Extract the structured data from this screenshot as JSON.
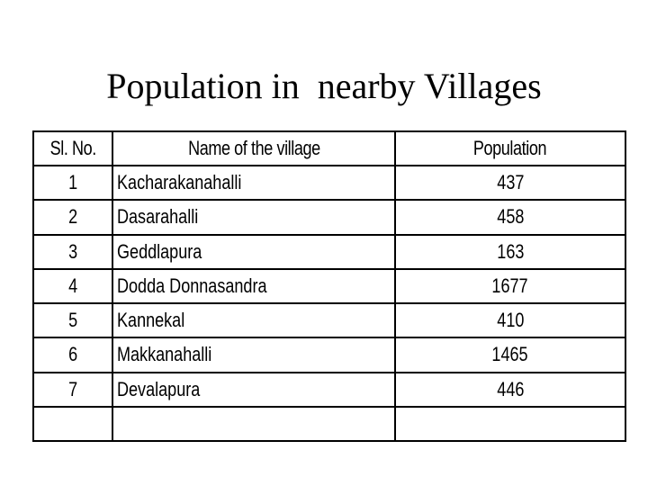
{
  "slide": {
    "title": "Population in  nearby Villages"
  },
  "table": {
    "headers": {
      "sl_no": "Sl. No.",
      "name": "Name of the village",
      "population": "Population"
    },
    "rows": [
      {
        "sl_no": "1",
        "name": "Kacharakanahalli",
        "population": "437"
      },
      {
        "sl_no": "2",
        "name": "Dasarahalli",
        "population": "458"
      },
      {
        "sl_no": "3",
        "name": "Geddlapura",
        "population": "163"
      },
      {
        "sl_no": "4",
        "name": "Dodda Donnasandra",
        "population": "1677"
      },
      {
        "sl_no": "5",
        "name": "Kannekal",
        "population": "410"
      },
      {
        "sl_no": "6",
        "name": "Makkanahalli",
        "population": "1465"
      },
      {
        "sl_no": "7",
        "name": "Devalapura",
        "population": "446"
      }
    ]
  }
}
